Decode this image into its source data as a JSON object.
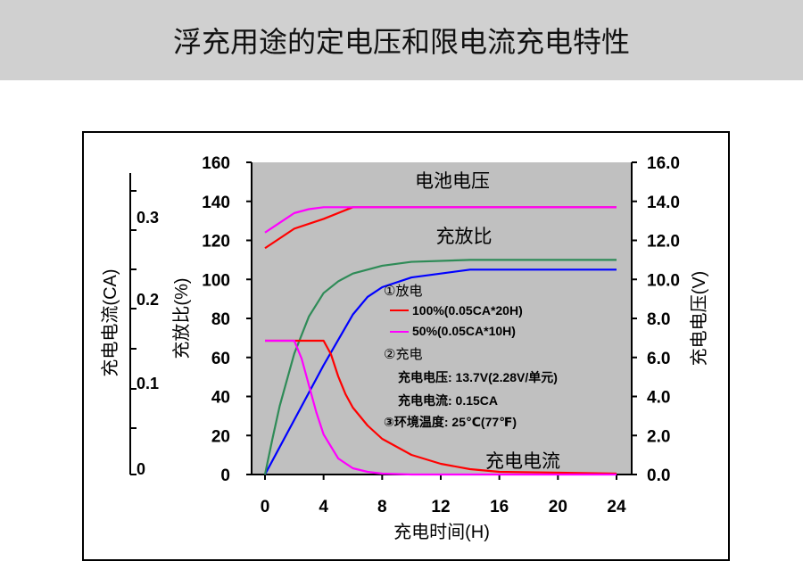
{
  "page": {
    "title": "浮充用途的定电压和限电流充电特性"
  },
  "chart_data": {
    "type": "line",
    "xlabel": "充电时间(H)",
    "x_ticks": [
      "0",
      "4",
      "8",
      "12",
      "16",
      "20",
      "24"
    ],
    "xlim": [
      0,
      24
    ],
    "y_left_label": "充放比(%)",
    "y_left_ticks": [
      "0",
      "20",
      "40",
      "60",
      "80",
      "100",
      "120",
      "140",
      "160"
    ],
    "y_left_lim": [
      0,
      160
    ],
    "y_right_label": "充电电压(V)",
    "y_right_ticks": [
      "0.0",
      "2.0",
      "4.0",
      "6.0",
      "8.0",
      "10.0",
      "12.0",
      "14.0",
      "16.0"
    ],
    "y_right_lim": [
      0,
      16
    ],
    "y_current_label": "充电电流(CA)",
    "y_current_ticks": [
      "0",
      "0.1",
      "0.2",
      "0.3"
    ],
    "y_current_lim": [
      0,
      0.35
    ],
    "series_labels": {
      "voltage": "电池电压",
      "ratio": "充放比",
      "current": "充电电流"
    },
    "legend": {
      "discharge_header": "①放电",
      "item_red": "100%(0.05CA*20H)",
      "item_magenta": "50%(0.05CA*10H)",
      "charge_header": "②充电",
      "charge_voltage": "充电电压:   13.7V(2.28V/单元)",
      "charge_current": "充电电流:   0.15CA",
      "ambient": "③环境温度:  25℃(77℉)"
    },
    "colors": {
      "red": "#ff0000",
      "magenta": "#ff00ff",
      "blue": "#0000ff",
      "green": "#2e8b57",
      "plot_bg": "#c0c0c0"
    },
    "series": [
      {
        "name": "100%(0.05CA*20H)",
        "quantity": "voltage",
        "axis": "right",
        "color": "red",
        "x": [
          0,
          2,
          4,
          6,
          24
        ],
        "y": [
          11.6,
          12.6,
          13.1,
          13.7,
          13.7
        ]
      },
      {
        "name": "50%(0.05CA*10H)",
        "quantity": "voltage",
        "axis": "right",
        "color": "magenta",
        "x": [
          0,
          1,
          2,
          3,
          4,
          24
        ],
        "y": [
          12.4,
          12.9,
          13.4,
          13.6,
          13.7,
          13.7
        ]
      },
      {
        "name": "100%(0.05CA*20H)",
        "quantity": "ratio",
        "axis": "left",
        "color": "blue",
        "x": [
          0,
          2,
          4,
          6,
          7,
          8,
          10,
          14,
          24
        ],
        "y": [
          0,
          28,
          56,
          82,
          91,
          96,
          101,
          105,
          105
        ]
      },
      {
        "name": "50%(0.05CA*10H)",
        "quantity": "ratio",
        "axis": "left",
        "color": "green",
        "x": [
          0,
          0.5,
          1,
          2,
          3,
          4,
          5,
          6,
          8,
          10,
          14,
          24
        ],
        "y": [
          0,
          18,
          35,
          62,
          81,
          93,
          99,
          103,
          107,
          109,
          110,
          110
        ]
      },
      {
        "name": "100%(0.05CA*20H)",
        "quantity": "current",
        "axis": "current",
        "color": "red",
        "x": [
          0,
          4,
          4.5,
          5,
          5.5,
          6,
          7,
          8,
          10,
          12,
          14,
          16,
          24
        ],
        "y": [
          0.15,
          0.15,
          0.135,
          0.11,
          0.09,
          0.075,
          0.055,
          0.04,
          0.022,
          0.012,
          0.006,
          0.003,
          0.001
        ]
      },
      {
        "name": "50%(0.05CA*10H)",
        "quantity": "current",
        "axis": "current",
        "color": "magenta",
        "x": [
          0,
          2,
          2.5,
          3,
          3.5,
          4,
          5,
          6,
          7,
          8,
          10,
          24
        ],
        "y": [
          0.15,
          0.15,
          0.13,
          0.1,
          0.07,
          0.045,
          0.018,
          0.007,
          0.003,
          0.001,
          0,
          0
        ]
      }
    ],
    "grid": false
  }
}
